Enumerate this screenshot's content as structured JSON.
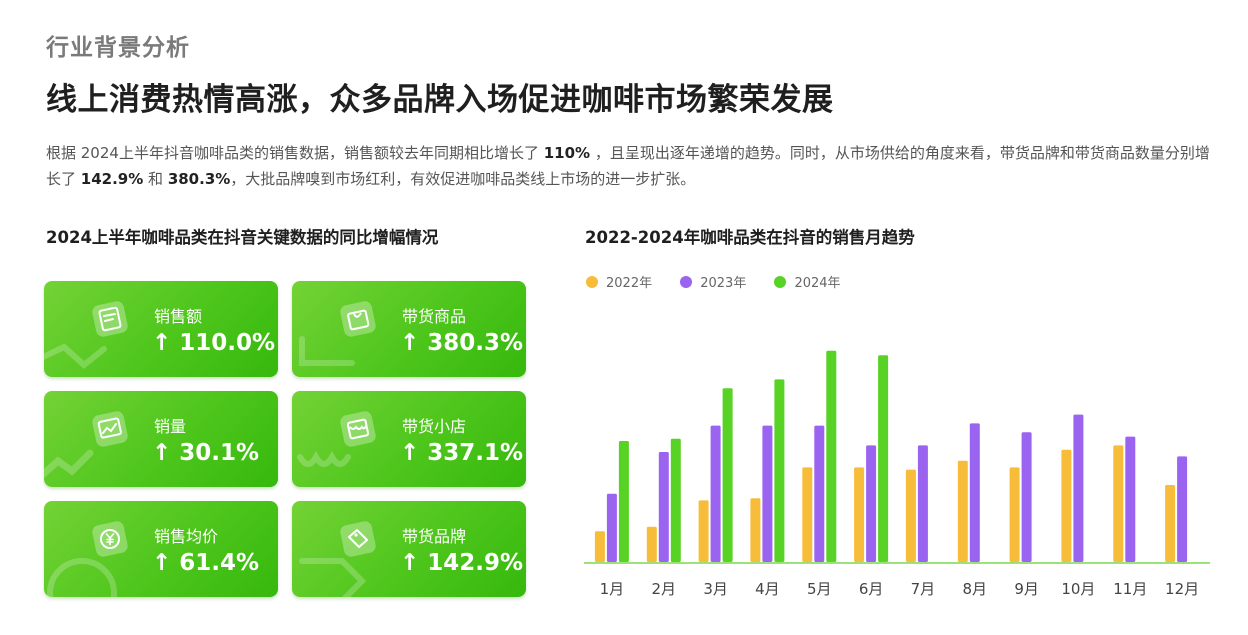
{
  "section_label": "行业背景分析",
  "headline": "线上消费热情高涨，众多品牌入场促进咖啡市场繁荣发展",
  "intro": {
    "seg1": "根据 2024上半年抖音咖啡品类的销售数据，销售额较去年同期相比增长了 ",
    "num1": "110%",
    "seg2": " ，且呈现出逐年递增的趋势。同时，从市场供给的角度来看，带货品牌和带货商品数量分别增长了 ",
    "num2": "142.9%",
    "seg3": " 和 ",
    "num3": "380.3%",
    "seg4": "，大批品牌嗅到市场红利，有效促进咖啡品类线上市场的进一步扩张。"
  },
  "left_panel": {
    "title": "2024上半年咖啡品类在抖音关键数据的同比增幅情况",
    "cards": [
      {
        "label": "销售额",
        "value": "↑ 110.0%",
        "icon": "receipt-icon"
      },
      {
        "label": "带货商品",
        "value": "↑ 380.3%",
        "icon": "shopping-bag-icon"
      },
      {
        "label": "销量",
        "value": "↑ 30.1%",
        "icon": "trend-chart-icon"
      },
      {
        "label": "带货小店",
        "value": "↑ 337.1%",
        "icon": "store-icon"
      },
      {
        "label": "销售均价",
        "value": "↑ 61.4%",
        "icon": "yuan-coin-icon"
      },
      {
        "label": "带货品牌",
        "value": "↑ 142.9%",
        "icon": "price-tag-icon"
      }
    ]
  },
  "chart_data": {
    "type": "bar",
    "title": "2022-2024年咖啡品类在抖音的销售月趋势",
    "categories": [
      "1月",
      "2月",
      "3月",
      "4月",
      "5月",
      "6月",
      "7月",
      "8月",
      "9月",
      "10月",
      "11月",
      "12月"
    ],
    "series": [
      {
        "name": "2022年",
        "color": "#f7bd3a",
        "values": [
          14,
          16,
          28,
          29,
          43,
          43,
          42,
          46,
          43,
          51,
          53,
          35
        ]
      },
      {
        "name": "2023年",
        "color": "#9a63f0",
        "values": [
          31,
          50,
          62,
          62,
          62,
          53,
          53,
          63,
          59,
          67,
          57,
          48
        ]
      },
      {
        "name": "2024年",
        "color": "#58d225",
        "values": [
          55,
          56,
          79,
          83,
          96,
          94,
          null,
          null,
          null,
          null,
          null,
          null
        ]
      }
    ],
    "ylim": [
      0,
      100
    ],
    "legend_position": "top-left",
    "grid": false,
    "xlabel": "",
    "ylabel": ""
  }
}
